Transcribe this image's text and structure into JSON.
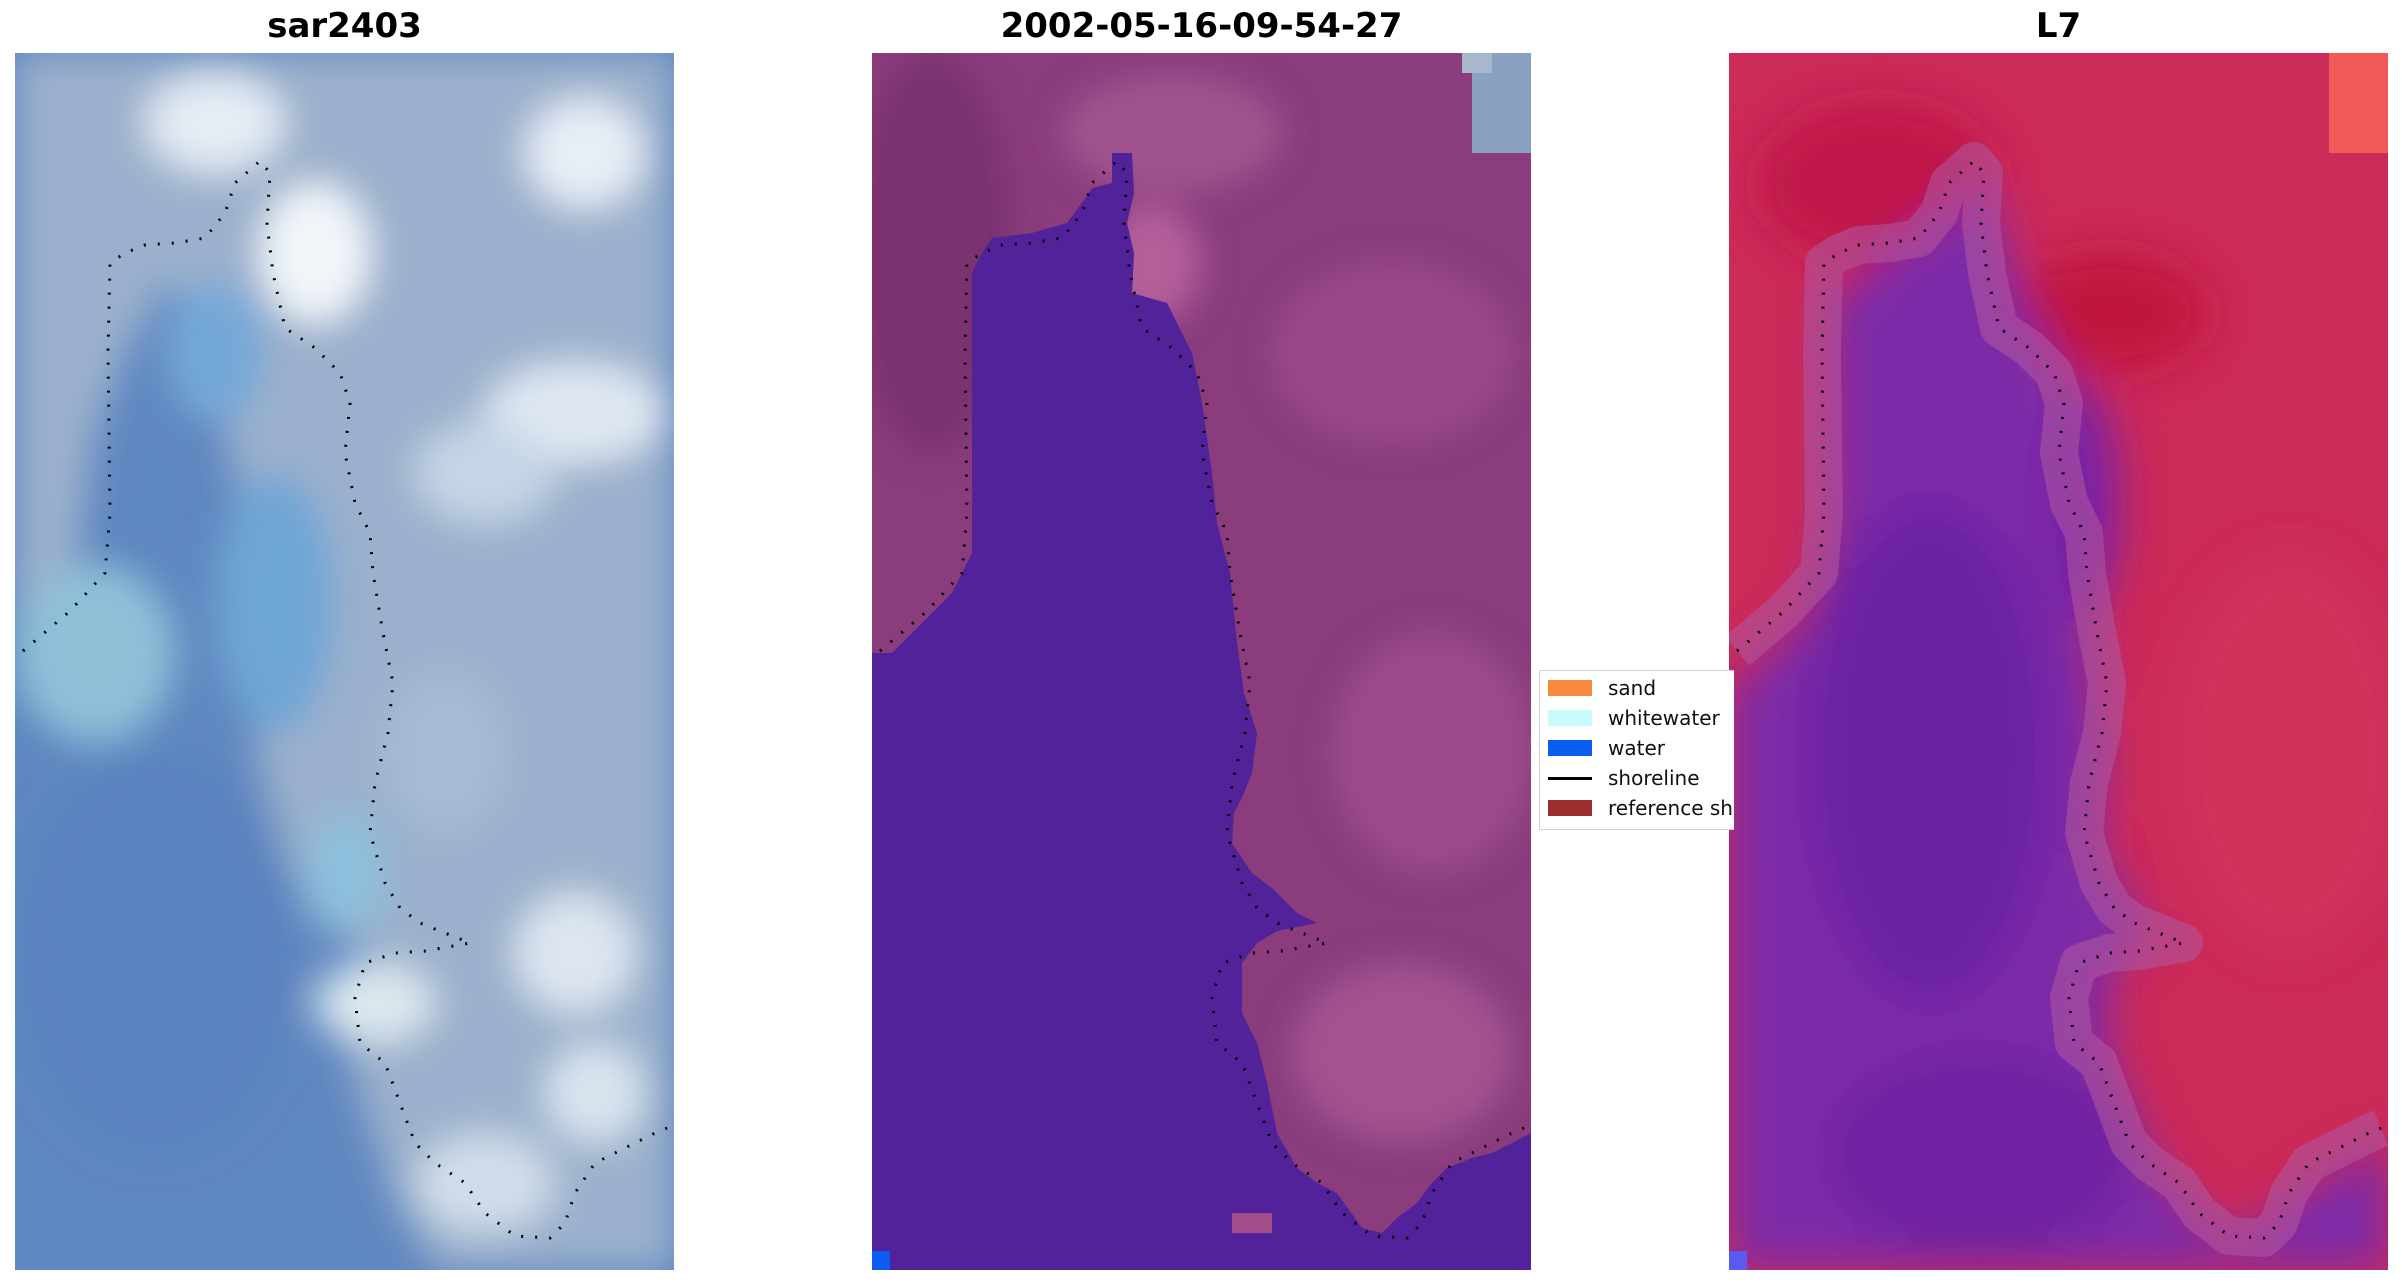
{
  "panels": [
    {
      "title": "sar2403",
      "name": "rgb-image-panel"
    },
    {
      "title": "2002-05-16-09-54-27",
      "name": "classified-image-panel"
    },
    {
      "title": "L7",
      "name": "mndwi-image-panel"
    }
  ],
  "legend": {
    "items": [
      {
        "label": "sand",
        "color": "#f78a3c",
        "kind": "patch"
      },
      {
        "label": "whitewater",
        "color": "#c8fbfb",
        "kind": "patch"
      },
      {
        "label": "water",
        "color": "#0b5cf0",
        "kind": "patch"
      },
      {
        "label": "shoreline",
        "color": "#000000",
        "kind": "line"
      },
      {
        "label": "reference sh",
        "color": "#9b2d2d",
        "kind": "patch"
      }
    ]
  },
  "colors": {
    "rgb_water": "#5b86c4",
    "rgb_land": "#8ea6c8",
    "class_water": "#51229a",
    "class_land": "#8a3c7c",
    "mndwi_water": "#7a2aa6",
    "mndwi_land": "#cc2a58"
  }
}
